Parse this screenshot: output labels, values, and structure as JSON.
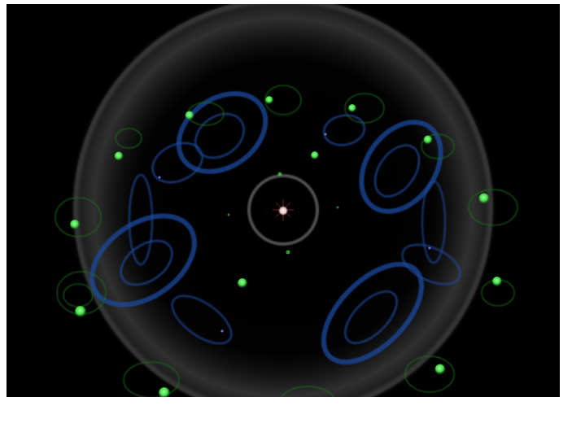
{
  "scene": {
    "background": "#000000",
    "halo_color": "#b4b4b4",
    "inner_ring_color": "#8c8c8c",
    "star_color": "#ffe6e6",
    "star_ray_color": "#b4283c",
    "blue_orbit_color": "#1e4ba0",
    "green_orbit_color": "#1e6e1e",
    "planet_color": "#46dc46",
    "small_blue_body_color": "#6478dc"
  }
}
